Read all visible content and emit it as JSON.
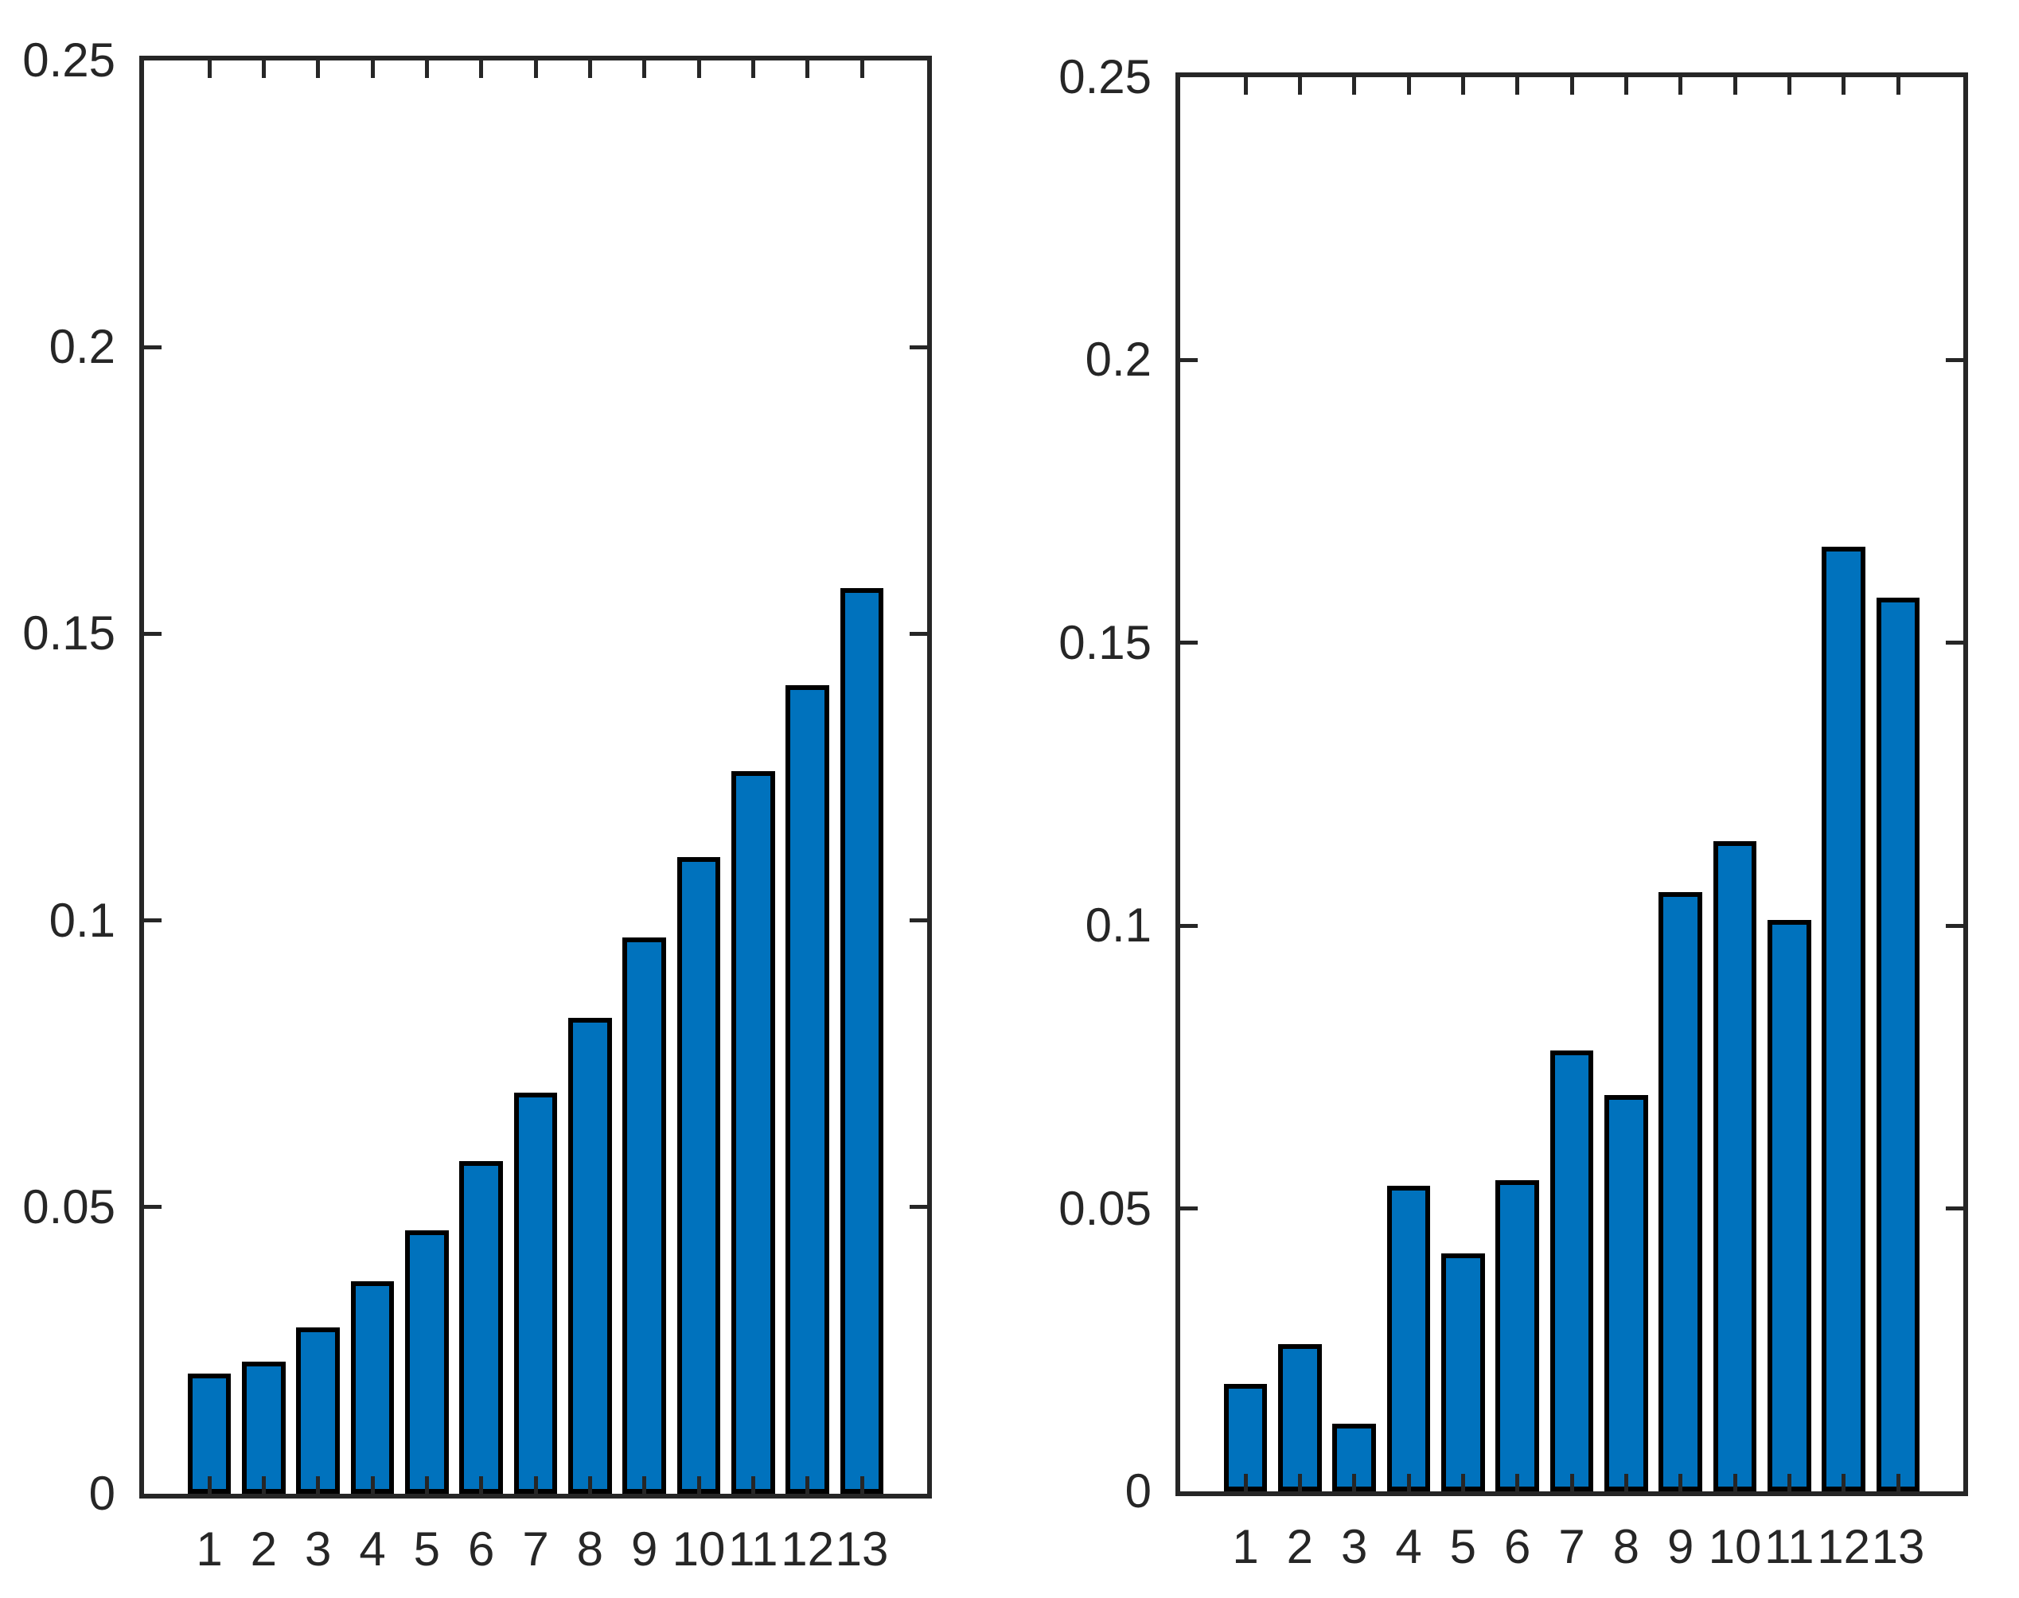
{
  "figure": {
    "background": "#ffffff",
    "description": "Two-panel bar chart figure, no titles, no legend"
  },
  "chart_data": [
    {
      "type": "bar",
      "panel": "left",
      "title": "",
      "xlabel": "",
      "ylabel": "",
      "categories": [
        "1",
        "2",
        "3",
        "4",
        "5",
        "6",
        "7",
        "8",
        "9",
        "10",
        "11",
        "12",
        "13"
      ],
      "values": [
        0.021,
        0.023,
        0.029,
        0.037,
        0.046,
        0.058,
        0.07,
        0.083,
        0.097,
        0.111,
        0.126,
        0.141,
        0.158
      ],
      "ylim": [
        0,
        0.25
      ],
      "yticks": [
        {
          "label": "0",
          "value": 0
        },
        {
          "label": "0.05",
          "value": 0.05
        },
        {
          "label": "0.1",
          "value": 0.1
        },
        {
          "label": "0.15",
          "value": 0.15
        },
        {
          "label": "0.2",
          "value": 0.2
        },
        {
          "label": "0.25",
          "value": 0.25
        }
      ],
      "grid": false,
      "legend": "none",
      "box": true,
      "bar_color": "#0072BD",
      "bar_edge_color": "#000000",
      "axis_color": "#262626"
    },
    {
      "type": "bar",
      "panel": "right",
      "title": "",
      "xlabel": "",
      "ylabel": "",
      "categories": [
        "1",
        "2",
        "3",
        "4",
        "5",
        "6",
        "7",
        "8",
        "9",
        "10",
        "11",
        "12",
        "13"
      ],
      "values": [
        0.019,
        0.026,
        0.012,
        0.054,
        0.042,
        0.055,
        0.078,
        0.07,
        0.106,
        0.115,
        0.101,
        0.167,
        0.158
      ],
      "ylim": [
        0,
        0.25
      ],
      "yticks": [
        {
          "label": "0",
          "value": 0
        },
        {
          "label": "0.05",
          "value": 0.05
        },
        {
          "label": "0.1",
          "value": 0.1
        },
        {
          "label": "0.15",
          "value": 0.15
        },
        {
          "label": "0.2",
          "value": 0.2
        },
        {
          "label": "0.25",
          "value": 0.25
        }
      ],
      "grid": false,
      "legend": "none",
      "box": true,
      "bar_color": "#0072BD",
      "bar_edge_color": "#000000",
      "axis_color": "#262626"
    }
  ]
}
